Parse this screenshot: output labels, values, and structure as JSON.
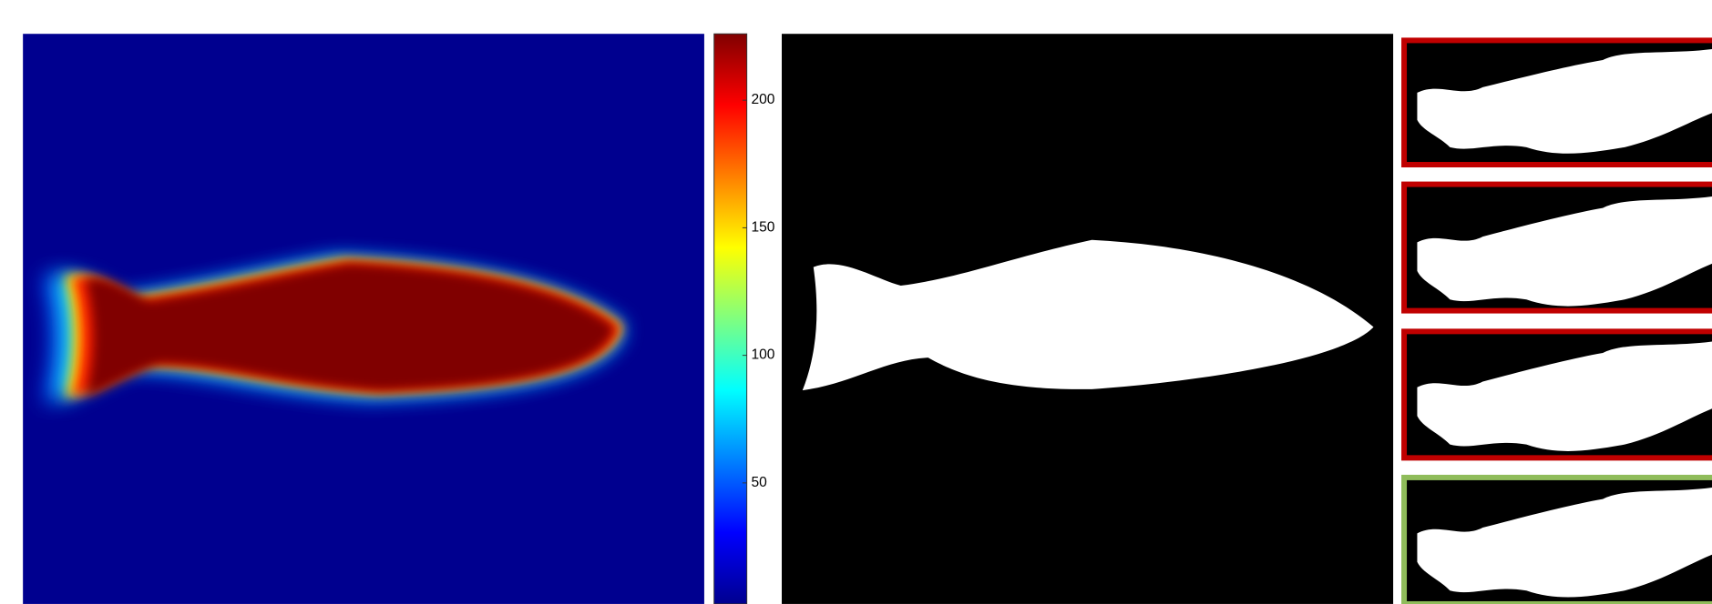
{
  "colorbar": {
    "lim": [
      0,
      226
    ],
    "ticks": [
      50,
      100,
      150,
      200
    ]
  }
}
